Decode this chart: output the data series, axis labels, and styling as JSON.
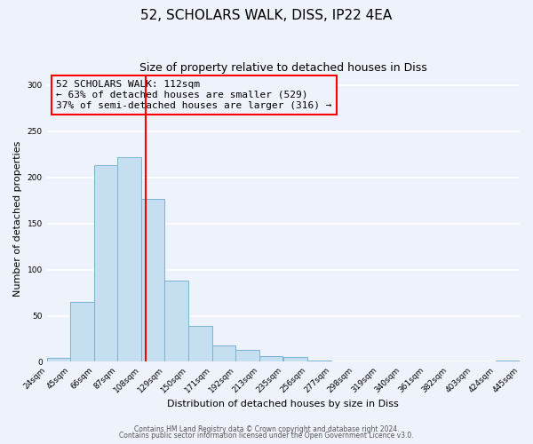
{
  "title": "52, SCHOLARS WALK, DISS, IP22 4EA",
  "subtitle": "Size of property relative to detached houses in Diss",
  "xlabel": "Distribution of detached houses by size in Diss",
  "ylabel": "Number of detached properties",
  "bin_edges": [
    24,
    45,
    66,
    87,
    108,
    129,
    150,
    171,
    192,
    213,
    235,
    256,
    277,
    298,
    319,
    340,
    361,
    382,
    403,
    424,
    445
  ],
  "bin_labels": [
    "24sqm",
    "45sqm",
    "66sqm",
    "87sqm",
    "108sqm",
    "129sqm",
    "150sqm",
    "171sqm",
    "192sqm",
    "213sqm",
    "235sqm",
    "256sqm",
    "277sqm",
    "298sqm",
    "319sqm",
    "340sqm",
    "361sqm",
    "382sqm",
    "403sqm",
    "424sqm",
    "445sqm"
  ],
  "counts": [
    4,
    65,
    213,
    222,
    177,
    88,
    39,
    18,
    13,
    6,
    5,
    1,
    0,
    0,
    0,
    0,
    0,
    0,
    0,
    1
  ],
  "bar_color": "#c6dff0",
  "bar_edgecolor": "#7ab3d3",
  "property_line_x": 112,
  "property_line_color": "red",
  "annotation_text": "52 SCHOLARS WALK: 112sqm\n← 63% of detached houses are smaller (529)\n37% of semi-detached houses are larger (316) →",
  "annotation_box_edgecolor": "red",
  "ylim": [
    0,
    310
  ],
  "yticks": [
    0,
    50,
    100,
    150,
    200,
    250,
    300
  ],
  "footer1": "Contains HM Land Registry data © Crown copyright and database right 2024.",
  "footer2": "Contains public sector information licensed under the Open Government Licence v3.0.",
  "background_color": "#eef2fb",
  "grid_color": "white",
  "title_fontsize": 11,
  "subtitle_fontsize": 9
}
